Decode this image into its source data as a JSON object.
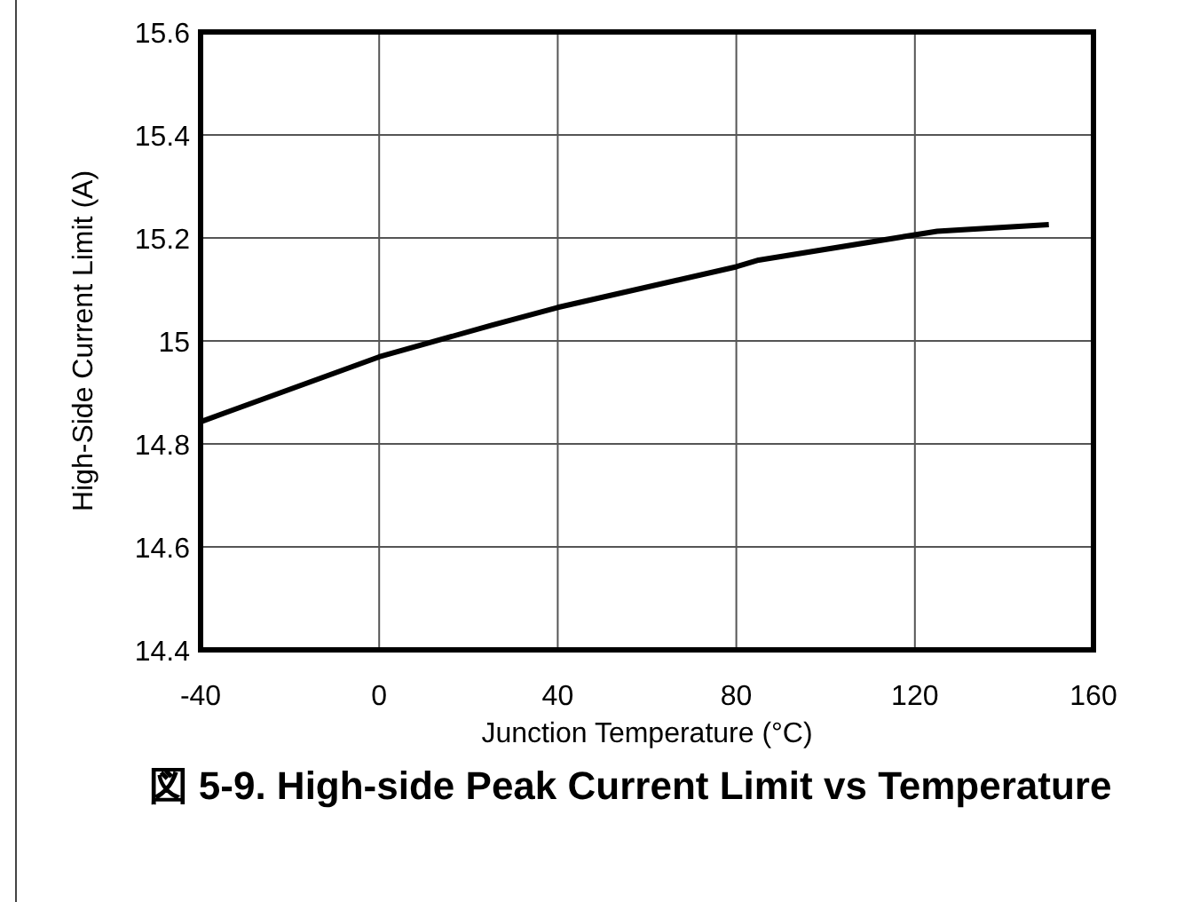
{
  "chart_data": {
    "type": "line",
    "title": "図 5-9. High-side Peak Current Limit vs Temperature",
    "xlabel": "Junction Temperature (°C)",
    "ylabel": "High-Side Current Limit (A)",
    "series": [
      {
        "color": "#000000",
        "x": [
          -40,
          0,
          25,
          40,
          80,
          85,
          125,
          150
        ],
        "values": [
          14.843,
          14.969,
          15.03,
          15.065,
          15.144,
          15.157,
          15.213,
          15.226
        ]
      }
    ],
    "xlim": [
      -40,
      160
    ],
    "ylim": [
      14.4,
      15.6
    ],
    "xticks": [
      -40,
      0,
      40,
      80,
      120,
      160
    ],
    "yticks": [
      14.4,
      14.6,
      14.8,
      {
        "value": 15,
        "label": "15"
      },
      15.2,
      15.4,
      15.6
    ],
    "grid": true,
    "marker": "none",
    "line_style": "solid"
  }
}
